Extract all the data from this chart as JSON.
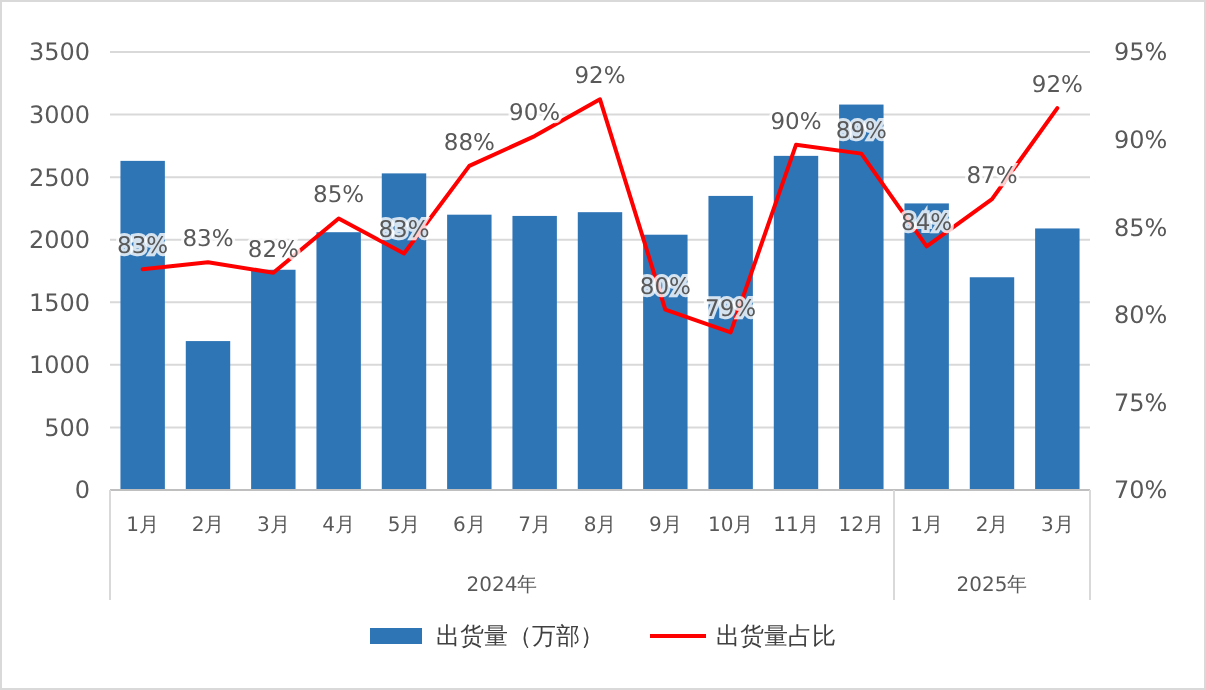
{
  "chart_data": {
    "type": "bar",
    "categories": [
      "1月",
      "2月",
      "3月",
      "4月",
      "5月",
      "6月",
      "7月",
      "8月",
      "9月",
      "10月",
      "11月",
      "12月",
      "1月",
      "2月",
      "3月"
    ],
    "series": [
      {
        "name": "出货量（万部）",
        "color": "#2e75b6",
        "values": [
          2630,
          1190,
          1760,
          2060,
          2530,
          2200,
          2190,
          2220,
          2040,
          2350,
          2670,
          3080,
          2290,
          1700,
          2090
        ]
      },
      {
        "name": "出货量占比",
        "type": "line",
        "axis": "y2",
        "color": "#ff0000",
        "values": [
          82.6,
          83.0,
          82.4,
          85.5,
          83.5,
          88.5,
          90.2,
          92.3,
          80.3,
          79.0,
          89.7,
          89.2,
          83.9,
          86.6,
          91.8
        ],
        "value_labels": [
          "83%",
          "83%",
          "82%",
          "85%",
          "83%",
          "88%",
          "90%",
          "92%",
          "80%",
          "79%",
          "90%",
          "89%",
          "84%",
          "87%",
          "92%"
        ]
      }
    ],
    "ylim": [
      0,
      3500
    ],
    "yticks": [
      0,
      500,
      1000,
      1500,
      2000,
      2500,
      3000,
      3500
    ],
    "y2lim": [
      70,
      95
    ],
    "y2ticks": [
      {
        "value": 70,
        "label": "70%"
      },
      {
        "value": 75,
        "label": "75%"
      },
      {
        "value": 80,
        "label": "80%"
      },
      {
        "value": 85,
        "label": "85%"
      },
      {
        "value": 90,
        "label": "90%"
      },
      {
        "value": 95,
        "label": "95%"
      }
    ],
    "annotations": [
      "2024年",
      "2025年"
    ],
    "grid": "y",
    "legend": "bottom",
    "marker": "none",
    "line_style": "solid"
  }
}
